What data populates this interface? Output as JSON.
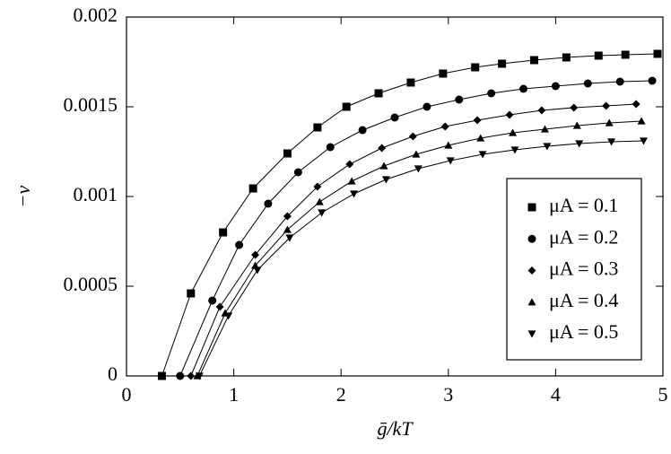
{
  "chart_data": {
    "type": "line",
    "xlabel": "ḡ/kT",
    "ylabel": "−ν",
    "xlim": [
      0,
      5
    ],
    "ylim": [
      0,
      0.002
    ],
    "xticks": [
      0,
      1,
      2,
      3,
      4,
      5
    ],
    "yticks": [
      0,
      0.0005,
      0.001,
      0.0015,
      0.002
    ],
    "legend": "right",
    "series": [
      {
        "name": "μA = 0.1",
        "color": "#000000",
        "marker": "square",
        "x": [
          0.33,
          0.6,
          0.9,
          1.18,
          1.5,
          1.78,
          2.05,
          2.35,
          2.65,
          2.95,
          3.25,
          3.5,
          3.8,
          4.1,
          4.4,
          4.65,
          4.95
        ],
        "values": [
          0,
          0.00046,
          0.0008,
          0.001045,
          0.00124,
          0.001385,
          0.0015,
          0.001575,
          0.001635,
          0.001685,
          0.00172,
          0.00174,
          0.00176,
          0.001775,
          0.001785,
          0.00179,
          0.001795
        ]
      },
      {
        "name": "μA = 0.2",
        "color": "#000000",
        "marker": "circle",
        "x": [
          0.5,
          0.8,
          1.05,
          1.32,
          1.6,
          1.9,
          2.2,
          2.5,
          2.8,
          3.1,
          3.4,
          3.7,
          4.0,
          4.3,
          4.6,
          4.9
        ],
        "values": [
          0,
          0.00042,
          0.00073,
          0.00096,
          0.001135,
          0.001275,
          0.00137,
          0.00144,
          0.0015,
          0.00154,
          0.001575,
          0.0016,
          0.001615,
          0.00163,
          0.00164,
          0.001645
        ]
      },
      {
        "name": "μA = 0.3",
        "color": "#000000",
        "marker": "diamond",
        "x": [
          0.6,
          0.87,
          1.2,
          1.5,
          1.78,
          2.08,
          2.38,
          2.67,
          2.97,
          3.27,
          3.57,
          3.87,
          4.17,
          4.47,
          4.75
        ],
        "values": [
          0,
          0.000385,
          0.000675,
          0.00089,
          0.001055,
          0.00118,
          0.00127,
          0.001335,
          0.00139,
          0.001425,
          0.001455,
          0.00148,
          0.001495,
          0.001505,
          0.001515
        ]
      },
      {
        "name": "μA = 0.4",
        "color": "#000000",
        "marker": "triangle-up",
        "x": [
          0.66,
          0.92,
          1.2,
          1.5,
          1.8,
          2.1,
          2.4,
          2.7,
          3.0,
          3.3,
          3.6,
          3.9,
          4.2,
          4.5,
          4.8
        ],
        "values": [
          0,
          0.00035,
          0.000615,
          0.000815,
          0.00097,
          0.001085,
          0.00117,
          0.001235,
          0.001285,
          0.001325,
          0.001355,
          0.001375,
          0.001395,
          0.00141,
          0.00142
        ]
      },
      {
        "name": "μA = 0.5",
        "color": "#000000",
        "marker": "triangle-down",
        "x": [
          0.68,
          0.95,
          1.22,
          1.52,
          1.82,
          2.12,
          2.42,
          2.72,
          3.02,
          3.32,
          3.62,
          3.92,
          4.22,
          4.52,
          4.82
        ],
        "values": [
          0,
          0.000335,
          0.00059,
          0.00077,
          0.00091,
          0.001015,
          0.001095,
          0.001155,
          0.0012,
          0.001235,
          0.00126,
          0.00128,
          0.001295,
          0.001305,
          0.00131
        ]
      }
    ]
  }
}
